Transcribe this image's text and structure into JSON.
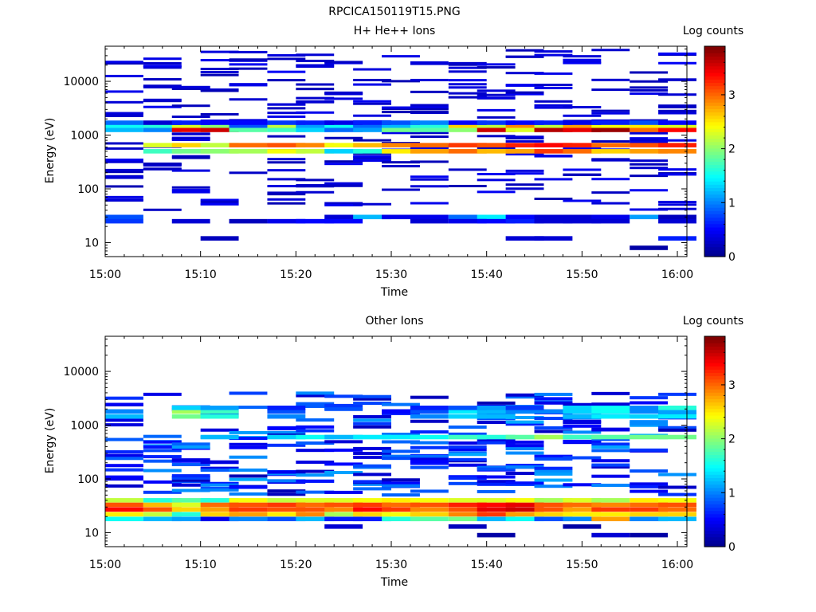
{
  "figure_title": "RPCICA150119T15.PNG",
  "colors": {
    "background": "#ffffff",
    "axis": "#000000",
    "colormap": [
      "#00008f",
      "#0000ff",
      "#007fff",
      "#00ffff",
      "#7fff7f",
      "#ffff00",
      "#ff7f00",
      "#ff0000",
      "#7f0000"
    ]
  },
  "chart_data": [
    {
      "type": "heatmap",
      "title": "H+ He++ Ions",
      "xlabel": "Time",
      "ylabel": "Energy (eV)",
      "colorbar_label": "Log counts",
      "colorbar_ticks": [
        "0",
        "1",
        "2",
        "3"
      ],
      "colorbar_range": [
        0,
        3.9
      ],
      "x_tick_labels": [
        "15:00",
        "15:10",
        "15:20",
        "15:30",
        "15:40",
        "15:50",
        "16:00"
      ],
      "y_tick_labels": [
        "10",
        "100",
        "1000",
        "10000"
      ],
      "y_scale": "log",
      "ylim": [
        5.5,
        45000
      ],
      "xlim": [
        "15:00",
        "16:01"
      ],
      "time_bins": [
        "15:00",
        "15:04",
        "15:07",
        "15:10",
        "15:13",
        "15:17",
        "15:20",
        "15:23",
        "15:26",
        "15:29",
        "15:32",
        "15:36",
        "15:39",
        "15:42",
        "15:45",
        "15:48",
        "15:51",
        "15:55",
        "15:58"
      ],
      "bands": [
        {
          "energy_ev": 30,
          "values": [
            0.8,
            0,
            0,
            0,
            0,
            0,
            0,
            0.3,
            1.2,
            0.4,
            0.4,
            0.9,
            1.4,
            0.5,
            0.3,
            0.3,
            0.4,
            1.1,
            0.2
          ]
        },
        {
          "energy_ev": 25,
          "values": [
            0.7,
            0,
            0.3,
            0,
            0.2,
            0.4,
            0.5,
            0.5,
            0,
            0,
            0.3,
            0.4,
            0.5,
            0.6,
            0.3,
            0.3,
            0.3,
            0,
            0.3
          ]
        },
        {
          "energy_ev": 12,
          "values": [
            0,
            0,
            0,
            0.2,
            0,
            0,
            0,
            0,
            0,
            0,
            0,
            0,
            0,
            0.3,
            0.3,
            0,
            0,
            0,
            0.6
          ]
        },
        {
          "energy_ev": 8,
          "values": [
            0,
            0,
            0,
            0,
            0,
            0,
            0,
            0,
            0,
            0,
            0,
            0,
            0,
            0,
            0,
            0,
            0,
            0.1,
            0
          ]
        },
        {
          "energy_ev": 500,
          "values": [
            0,
            1.7,
            1.9,
            2.0,
            2.1,
            2.4,
            2.2,
            1.3,
            1.6,
            2.5,
            2.8,
            3.0,
            2.7,
            2.8,
            3.2,
            3.0,
            2.6,
            2.8,
            2.9
          ]
        },
        {
          "energy_ev": 650,
          "values": [
            0,
            2.3,
            2.6,
            2.2,
            3.0,
            3.1,
            2.9,
            2.4,
            2.7,
            2.9,
            3.0,
            3.2,
            3.1,
            3.3,
            3.4,
            3.3,
            3.0,
            3.1,
            3.3
          ]
        },
        {
          "energy_ev": 1250,
          "values": [
            1.2,
            1.0,
            3.5,
            3.6,
            1.8,
            1.7,
            1.3,
            0.9,
            1.1,
            1.9,
            1.8,
            2.0,
            3.6,
            2.3,
            3.7,
            3.5,
            3.8,
            3.0,
            3.4
          ]
        },
        {
          "energy_ev": 1500,
          "values": [
            1.5,
            1.6,
            2.3,
            2.0,
            0.8,
            2.2,
            1.1,
            1.5,
            0.9,
            1.2,
            1.6,
            2.6,
            2.2,
            2.9,
            2.2,
            2.8,
            2.4,
            2.5,
            2.3
          ]
        },
        {
          "energy_ev": 1700,
          "values": [
            0.9,
            0.3,
            0.6,
            0.5,
            0.5,
            0.7,
            0.6,
            0.4,
            0.6,
            0.8,
            1.0,
            0.5,
            0.7,
            0.5,
            0.6,
            0.4,
            0.6,
            0.8,
            0.5
          ]
        }
      ],
      "single_count_bins": "all other dark-blue dashes between 40 and 40000 eV have value 0.3"
    },
    {
      "type": "heatmap",
      "title": "Other Ions",
      "xlabel": "Time",
      "ylabel": "Energy (eV)",
      "colorbar_label": "Log counts",
      "colorbar_ticks": [
        "0",
        "1",
        "2",
        "3"
      ],
      "colorbar_range": [
        0,
        3.9
      ],
      "x_tick_labels": [
        "15:00",
        "15:10",
        "15:20",
        "15:30",
        "15:40",
        "15:50",
        "16:00"
      ],
      "y_tick_labels": [
        "10",
        "100",
        "1000",
        "10000"
      ],
      "y_scale": "log",
      "ylim": [
        5.5,
        45000
      ],
      "xlim": [
        "15:00",
        "16:01"
      ],
      "time_bins": [
        "15:00",
        "15:04",
        "15:07",
        "15:10",
        "15:13",
        "15:17",
        "15:20",
        "15:23",
        "15:26",
        "15:29",
        "15:32",
        "15:36",
        "15:39",
        "15:42",
        "15:45",
        "15:48",
        "15:51",
        "15:55",
        "15:58"
      ],
      "bands": [
        {
          "energy_ev": 40,
          "values": [
            2.2,
            1.6,
            1.8,
            1.6,
            2.4,
            2.2,
            2.3,
            2.3,
            2.4,
            2.5,
            2.4,
            2.3,
            2.3,
            2.4,
            2.1,
            2.3,
            2.1,
            2.5,
            2.4
          ]
        },
        {
          "energy_ev": 33,
          "values": [
            3.1,
            2.7,
            2.3,
            3.0,
            3.1,
            3.2,
            3.0,
            3.1,
            3.2,
            3.0,
            3.1,
            3.3,
            3.4,
            3.5,
            3.1,
            3.0,
            2.9,
            3.0,
            3.1
          ]
        },
        {
          "energy_ev": 27,
          "values": [
            3.4,
            3.1,
            2.6,
            2.8,
            3.2,
            3.1,
            3.1,
            2.9,
            3.4,
            3.2,
            2.9,
            3.1,
            3.5,
            3.6,
            3.1,
            2.8,
            3.2,
            3.2,
            3.0
          ]
        },
        {
          "energy_ev": 22,
          "values": [
            2.5,
            2.2,
            1.6,
            2.6,
            2.8,
            2.5,
            2.9,
            2.1,
            2.6,
            2.4,
            2.6,
            2.9,
            3.2,
            2.8,
            2.6,
            2.5,
            2.5,
            2.6,
            2.6
          ]
        },
        {
          "energy_ev": 18,
          "values": [
            1.5,
            1.2,
            1.1,
            0.4,
            1.0,
            0.8,
            1.2,
            0.6,
            0.6,
            1.6,
            1.8,
            1.9,
            1.2,
            1.5,
            0.8,
            1.0,
            2.8,
            1.0,
            1.2
          ]
        },
        {
          "energy_ev": 13,
          "values": [
            0,
            0,
            0,
            0,
            0,
            0,
            0,
            0.3,
            0,
            0,
            0,
            0.2,
            0,
            0,
            0,
            0.1,
            0,
            0,
            0
          ]
        },
        {
          "energy_ev": 9,
          "values": [
            0,
            0,
            0,
            0,
            0,
            0,
            0,
            0,
            0,
            0,
            0,
            0,
            0.1,
            0,
            0,
            0,
            0.3,
            0.1,
            0
          ]
        },
        {
          "energy_ev": 600,
          "values": [
            0,
            0,
            0,
            1.2,
            0,
            1.3,
            1.5,
            1.2,
            1.4,
            1.4,
            1.5,
            1.7,
            1.6,
            1.8,
            2.1,
            1.7,
            1.8,
            1.9,
            1.9
          ]
        },
        {
          "energy_ev": 1450,
          "values": [
            1.2,
            0,
            1.9,
            1.6,
            0,
            1.0,
            0,
            0,
            0,
            0,
            1.0,
            1.3,
            1.2,
            0,
            0,
            1.2,
            1.4,
            1.3,
            1.4
          ]
        },
        {
          "energy_ev": 1800,
          "values": [
            1.0,
            0,
            2.1,
            1.7,
            0,
            0.8,
            0,
            0,
            0,
            0.5,
            0.8,
            1.4,
            1.2,
            1.0,
            1.0,
            1.3,
            1.5,
            1.0,
            1.1
          ]
        },
        {
          "energy_ev": 2100,
          "values": [
            0,
            0,
            1.3,
            1.1,
            0,
            0.6,
            0,
            0,
            0,
            0,
            0.6,
            0.8,
            1.1,
            0.7,
            0,
            1.3,
            1.5,
            1.0,
            1.6
          ]
        }
      ],
      "low_count_fill": "dense dark-blue structure between 50 and 450 eV with values 0.3 to 1.5"
    }
  ]
}
